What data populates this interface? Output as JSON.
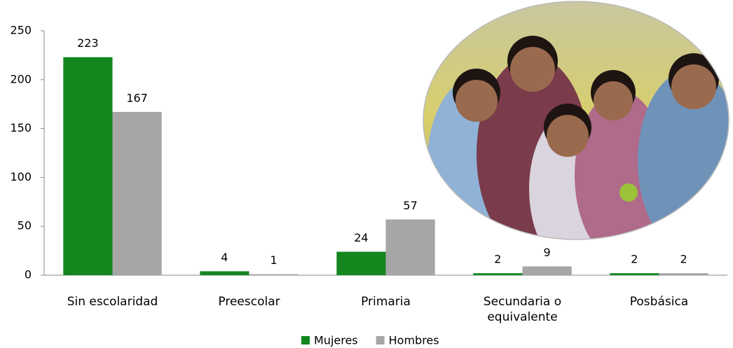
{
  "chart_data": {
    "type": "bar",
    "categories": [
      "Sin escolaridad",
      "Preescolar",
      "Primaria",
      "Secundaria o equivalente",
      "Posbásica"
    ],
    "series": [
      {
        "name": "Mujeres",
        "color": "#13861e",
        "values": [
          223,
          4,
          24,
          2,
          2
        ]
      },
      {
        "name": "Hombres",
        "color": "#a6a6a6",
        "values": [
          167,
          1,
          57,
          9,
          2
        ]
      }
    ],
    "ylim": [
      0,
      250
    ],
    "yticks": [
      0,
      50,
      100,
      150,
      200,
      250
    ],
    "grid": false,
    "legend": "bottom"
  }
}
